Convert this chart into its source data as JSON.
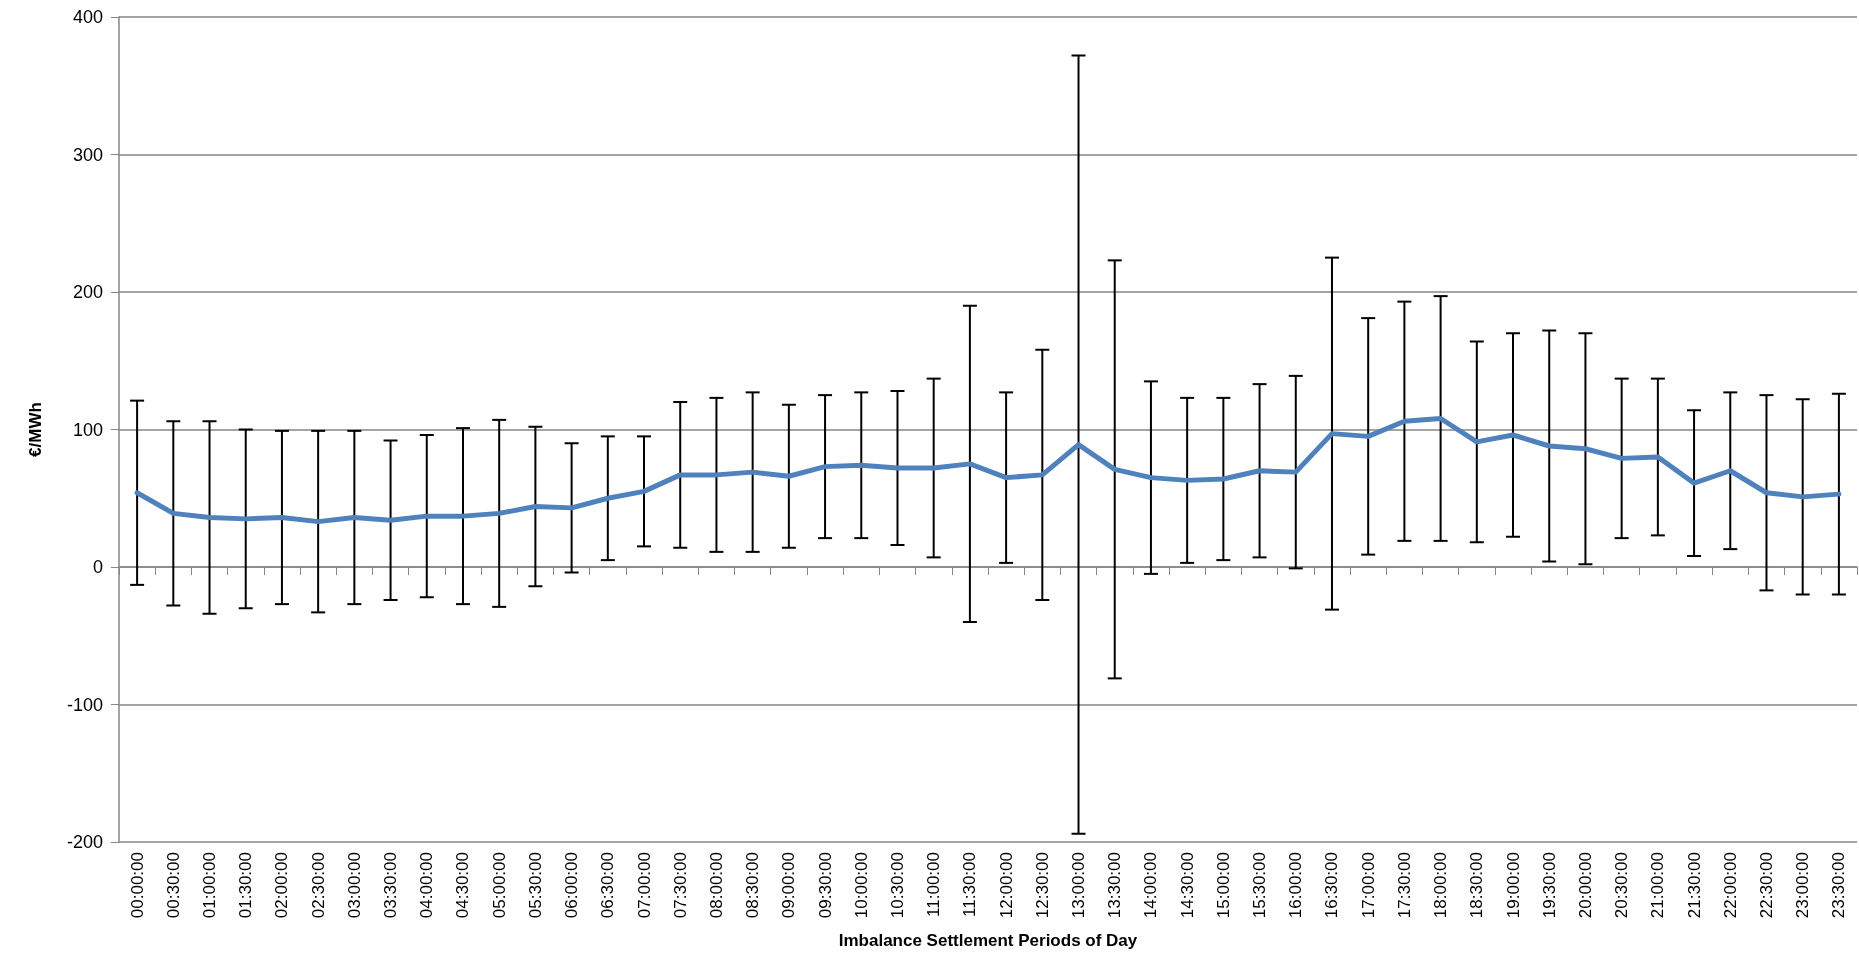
{
  "chart_data": {
    "type": "line",
    "xlabel": "Imbalance Settlement Periods of Day",
    "ylabel": "€/MWh",
    "categories": [
      "00:00:00",
      "00:30:00",
      "01:00:00",
      "01:30:00",
      "02:00:00",
      "02:30:00",
      "03:00:00",
      "03:30:00",
      "04:00:00",
      "04:30:00",
      "05:00:00",
      "05:30:00",
      "06:00:00",
      "06:30:00",
      "07:00:00",
      "07:30:00",
      "08:00:00",
      "08:30:00",
      "09:00:00",
      "09:30:00",
      "10:00:00",
      "10:30:00",
      "11:00:00",
      "11:30:00",
      "12:00:00",
      "12:30:00",
      "13:00:00",
      "13:30:00",
      "14:00:00",
      "14:30:00",
      "15:00:00",
      "15:30:00",
      "16:00:00",
      "16:30:00",
      "17:00:00",
      "17:30:00",
      "18:00:00",
      "18:30:00",
      "19:00:00",
      "19:30:00",
      "20:00:00",
      "20:30:00",
      "21:00:00",
      "21:30:00",
      "22:00:00",
      "22:30:00",
      "23:00:00",
      "23:30:00"
    ],
    "series": [
      {
        "color": "#4f81bd",
        "values": [
          54,
          39,
          36,
          35,
          36,
          33,
          36,
          34,
          37,
          37,
          39,
          44,
          43,
          50,
          55,
          67,
          67,
          69,
          66,
          73,
          74,
          72,
          72,
          75,
          65,
          67,
          89,
          71,
          65,
          63,
          64,
          70,
          69,
          97,
          95,
          106,
          108,
          91,
          96,
          88,
          86,
          79,
          80,
          61,
          70,
          54,
          51,
          53
        ],
        "errors": [
          67,
          67,
          70,
          65,
          63,
          66,
          63,
          58,
          59,
          64,
          68,
          58,
          47,
          45,
          40,
          53,
          56,
          58,
          52,
          52,
          53,
          56,
          65,
          115,
          62,
          91,
          283,
          152,
          70,
          60,
          59,
          63,
          70,
          128,
          86,
          87,
          89,
          73,
          74,
          84,
          84,
          58,
          57,
          53,
          57,
          71,
          71,
          73
        ]
      }
    ],
    "ylim": [
      -200,
      400
    ],
    "yticks": [
      -200,
      -100,
      0,
      100,
      200,
      300,
      400
    ],
    "grid": "y",
    "marker": "none",
    "line_style": "solid"
  }
}
